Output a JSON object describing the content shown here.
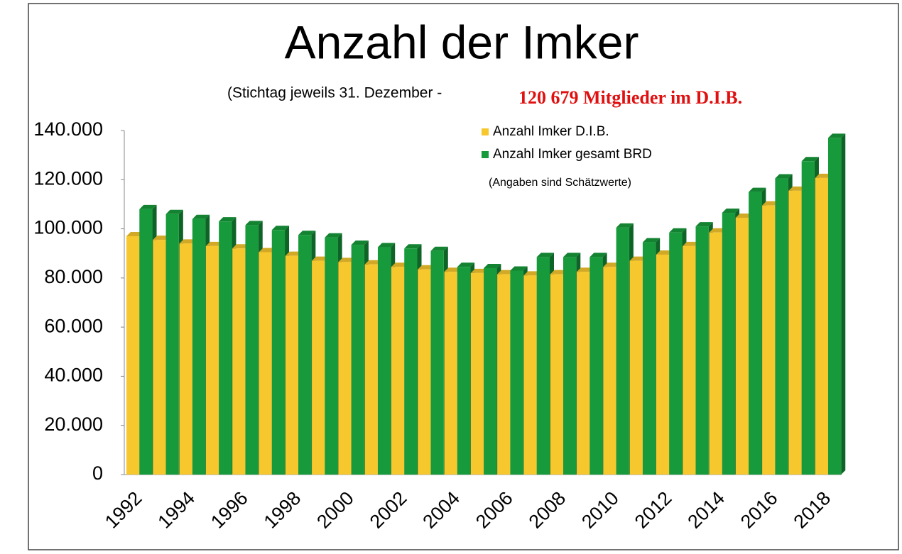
{
  "chart_data": {
    "type": "bar",
    "title": "Anzahl der Imker",
    "subtitle": "(Stichtag jeweils 31. Dezember -",
    "annotation": "120 679 Mitglieder im D.I.B.",
    "note": "(Angaben sind Schätzwerte)",
    "categories": [
      "1992",
      null,
      "1994",
      null,
      "1996",
      null,
      "1998",
      null,
      "2000",
      null,
      "2002",
      null,
      "2004",
      null,
      "2006",
      null,
      "2008",
      null,
      "2010",
      null,
      "2012",
      null,
      "2014",
      null,
      "2016",
      null,
      "2018"
    ],
    "series": [
      {
        "name": "Anzahl Imker D.I.B.",
        "color": "#f7c72e",
        "values": [
          97000,
          95500,
          94000,
          93000,
          92000,
          90500,
          89000,
          87000,
          86500,
          85500,
          84500,
          83500,
          82500,
          82000,
          81500,
          81000,
          81500,
          82500,
          84500,
          87000,
          89500,
          93000,
          98500,
          104500,
          109500,
          115500,
          120679
        ]
      },
      {
        "name": "Anzahl Imker gesamt BRD",
        "color": "#169a3b",
        "values": [
          108000,
          106000,
          104000,
          103000,
          101500,
          99500,
          97500,
          96500,
          93500,
          92500,
          92000,
          91000,
          84500,
          84000,
          83000,
          88500,
          88500,
          88500,
          100500,
          94500,
          98500,
          101000,
          106500,
          115000,
          120500,
          127500,
          137000
        ]
      }
    ],
    "ylim": [
      0,
      140000
    ],
    "yticks": [
      0,
      {
        "value": 20000,
        "label": "20.000"
      },
      {
        "value": 40000,
        "label": "40.000"
      },
      {
        "value": 60000,
        "label": "60.000"
      },
      {
        "value": 80000,
        "label": "80.000"
      },
      {
        "value": 100000,
        "label": "100.000"
      },
      {
        "value": 120000,
        "label": "120.000"
      },
      {
        "value": 140000,
        "label": "140.000"
      }
    ],
    "legend": "top-right"
  }
}
